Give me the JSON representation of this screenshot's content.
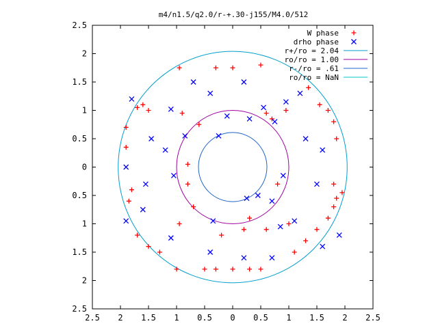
{
  "chart_data": {
    "type": "scatter",
    "title": "m4/n1.5/q2.0/r-+.30-j155/M4.0/512",
    "xlim": [
      -2.5,
      2.5
    ],
    "ylim": [
      -2.5,
      2.5
    ],
    "x_tick_values": [
      -2.5,
      -2,
      -1.5,
      -1,
      -0.5,
      0,
      0.5,
      1,
      1.5,
      2,
      2.5
    ],
    "x_tick_labels": [
      "2.5",
      "2",
      "1.5",
      "1",
      "0.5",
      "0",
      "0.5",
      "1",
      "1.5",
      "2",
      "2.5"
    ],
    "y_tick_values": [
      2.5,
      2,
      1.5,
      1,
      0.5,
      0,
      -0.5,
      -1,
      -1.5,
      -2,
      -2.5
    ],
    "y_tick_labels": [
      "2.5",
      "2",
      "1.5",
      "1",
      "0.5",
      "0",
      "0.5",
      "1",
      "1.5",
      "2",
      "2.5"
    ],
    "grid": false,
    "legend_position": "top-right",
    "legend": [
      {
        "label": "W phase",
        "kind": "point",
        "marker": "plus",
        "color": "#ff0000"
      },
      {
        "label": "drho phase",
        "kind": "point",
        "marker": "cross",
        "color": "#0000ff"
      },
      {
        "label": "r+/ro = 2.04",
        "kind": "circle",
        "radius": 2.04,
        "color": "#009ece"
      },
      {
        "label": "ro/ro = 1.00",
        "kind": "circle",
        "radius": 1.0,
        "color": "#a000a0"
      },
      {
        "label": "r-/ro = .61",
        "kind": "circle",
        "radius": 0.61,
        "color": "#1e64c8"
      },
      {
        "label": "ro/ro = NaN",
        "kind": "circle",
        "radius": null,
        "color": "#00c8c8"
      }
    ],
    "series": [
      {
        "name": "W phase",
        "marker": "plus",
        "color": "#ff0000",
        "points": [
          [
            -0.9,
            0.95
          ],
          [
            -1.9,
            0.35
          ],
          [
            -1.8,
            -0.4
          ],
          [
            -0.95,
            -1.0
          ],
          [
            -0.5,
            -1.8
          ],
          [
            0.5,
            -1.8
          ],
          [
            1.0,
            -1.0
          ],
          [
            0.5,
            1.8
          ],
          [
            0.95,
            1.0
          ],
          [
            1.85,
            0.5
          ],
          [
            1.8,
            -0.3
          ],
          [
            1.95,
            -0.45
          ],
          [
            0.0,
            1.75
          ],
          [
            -0.3,
            1.75
          ],
          [
            -0.95,
            1.75
          ],
          [
            1.35,
            1.4
          ],
          [
            1.55,
            1.1
          ],
          [
            1.7,
            1.0
          ],
          [
            1.8,
            0.8
          ],
          [
            -1.5,
            1.0
          ],
          [
            -1.6,
            1.1
          ],
          [
            -1.7,
            1.05
          ],
          [
            -1.9,
            0.7
          ],
          [
            -1.85,
            -0.6
          ],
          [
            -1.7,
            -1.2
          ],
          [
            -1.5,
            -1.4
          ],
          [
            -1.3,
            -1.5
          ],
          [
            -1.0,
            -1.8
          ],
          [
            -0.3,
            -1.8
          ],
          [
            0.0,
            -1.8
          ],
          [
            0.3,
            -1.8
          ],
          [
            1.1,
            -1.5
          ],
          [
            1.3,
            -1.3
          ],
          [
            1.5,
            -1.1
          ],
          [
            1.7,
            -0.9
          ],
          [
            1.8,
            -0.7
          ],
          [
            1.85,
            -0.55
          ],
          [
            0.6,
            0.95
          ],
          [
            0.7,
            0.85
          ],
          [
            -0.7,
            -0.7
          ],
          [
            -0.8,
            -0.3
          ],
          [
            0.3,
            -0.9
          ],
          [
            -0.2,
            -1.2
          ],
          [
            0.2,
            -1.1
          ],
          [
            0.8,
            -0.3
          ],
          [
            0.6,
            -1.1
          ],
          [
            -0.8,
            0.05
          ],
          [
            -0.6,
            0.75
          ]
        ]
      },
      {
        "name": "drho phase",
        "marker": "cross",
        "color": "#0000ff",
        "points": [
          [
            -1.1,
            1.02
          ],
          [
            -1.9,
            0.0
          ],
          [
            -1.6,
            -0.75
          ],
          [
            -0.4,
            -1.5
          ],
          [
            0.2,
            -1.6
          ],
          [
            0.7,
            -1.6
          ],
          [
            1.5,
            -0.3
          ],
          [
            0.55,
            1.05
          ],
          [
            1.3,
            0.5
          ],
          [
            -0.4,
            1.3
          ],
          [
            0.2,
            1.5
          ],
          [
            1.6,
            0.3
          ],
          [
            -1.1,
            -1.25
          ],
          [
            0.85,
            -1.05
          ],
          [
            0.7,
            -0.6
          ],
          [
            -1.05,
            -0.15
          ],
          [
            -0.1,
            0.9
          ],
          [
            0.3,
            0.85
          ],
          [
            0.75,
            0.8
          ],
          [
            -0.85,
            0.55
          ],
          [
            -1.2,
            0.3
          ],
          [
            1.6,
            -1.4
          ],
          [
            1.9,
            -1.2
          ],
          [
            1.2,
            1.3
          ],
          [
            -1.45,
            0.5
          ],
          [
            -1.55,
            -0.3
          ],
          [
            0.9,
            -0.15
          ],
          [
            0.45,
            -0.5
          ],
          [
            -0.35,
            -0.95
          ],
          [
            -0.25,
            0.55
          ],
          [
            0.25,
            -0.55
          ],
          [
            -0.7,
            1.5
          ],
          [
            0.95,
            1.15
          ],
          [
            1.1,
            -0.95
          ],
          [
            -1.8,
            1.2
          ],
          [
            -1.9,
            -0.95
          ]
        ]
      }
    ]
  }
}
